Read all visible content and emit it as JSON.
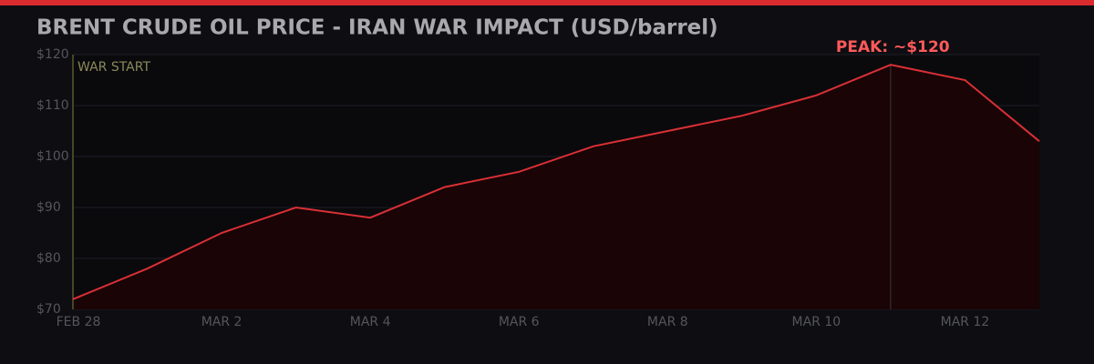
{
  "chart_data": {
    "type": "line",
    "title": "BRENT CRUDE OIL PRICE - IRAN WAR IMPACT (USD/barrel)",
    "categories": [
      "FEB 28",
      null,
      "MAR 2",
      null,
      "MAR 4",
      null,
      "MAR 6",
      null,
      "MAR 8",
      null,
      "MAR 10",
      null,
      "MAR 12",
      null
    ],
    "values": [
      72,
      78,
      85,
      90,
      88,
      94,
      97,
      102,
      105,
      108,
      112,
      118,
      115,
      103
    ],
    "color": "#d93036",
    "ylim": [
      70,
      120
    ],
    "yticks": [
      {
        "value": 70,
        "label": "$70"
      },
      {
        "value": 80,
        "label": "$80"
      },
      {
        "value": 90,
        "label": "$90"
      },
      {
        "value": 100,
        "label": "$100"
      },
      {
        "value": 110,
        "label": "$110"
      },
      {
        "value": 120,
        "label": "$120"
      }
    ],
    "grid": true,
    "start_label": "WAR START",
    "peak_label": "PEAK: ~$120"
  }
}
